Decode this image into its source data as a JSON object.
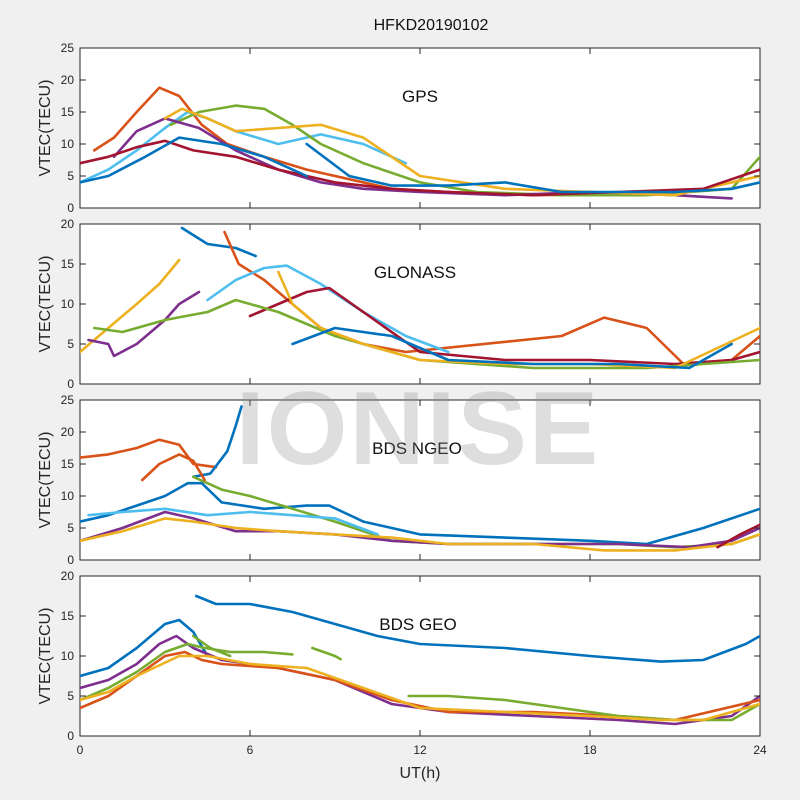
{
  "chart_data": [
    {
      "type": "line",
      "title": "HFKD20190102",
      "panel_label": "GPS",
      "xlabel": "",
      "ylabel": "VTEC(TECU)",
      "xlim": [
        0,
        24
      ],
      "ylim": [
        0,
        25
      ],
      "xticks": [
        0,
        6,
        12,
        18,
        24
      ],
      "yticks": [
        0,
        5,
        10,
        15,
        20,
        25
      ],
      "series": [
        {
          "color": "#d95319",
          "x": [
            0.5,
            1.2,
            2,
            2.8,
            3.5,
            4.3,
            5.2,
            6.5,
            8,
            9.5,
            11,
            13,
            16,
            19,
            21
          ],
          "y": [
            9,
            11,
            15,
            18.8,
            17.5,
            13,
            10,
            8,
            6,
            4.5,
            3,
            2.5,
            2,
            2.2,
            2.5
          ]
        },
        {
          "color": "#4dbeee",
          "x": [
            0,
            1,
            2,
            3,
            3.8,
            4.5,
            5.5,
            7,
            8.5,
            10,
            11.5
          ],
          "y": [
            4,
            6,
            9,
            12.5,
            15,
            14,
            12,
            10,
            11.5,
            10,
            7
          ]
        },
        {
          "color": "#77ac30",
          "x": [
            3.2,
            4.2,
            5.5,
            6.5,
            7.5,
            8.5,
            10,
            12,
            14,
            17,
            20,
            23,
            24
          ],
          "y": [
            13,
            15,
            16,
            15.5,
            13,
            10,
            7,
            4,
            2.5,
            2,
            2,
            3,
            8
          ]
        },
        {
          "color": "#7e2f8e",
          "x": [
            1.2,
            2,
            3,
            4.2,
            5.5,
            7,
            8.5,
            10,
            12,
            15,
            18,
            21,
            23
          ],
          "y": [
            8,
            12,
            14,
            12.5,
            9,
            6,
            4,
            3,
            2.5,
            2,
            2.5,
            2,
            1.5
          ]
        },
        {
          "color": "#edb120",
          "x": [
            3,
            3.6,
            4.5,
            5.5,
            7,
            8.5,
            10,
            12,
            15,
            18,
            21,
            24
          ],
          "y": [
            14,
            15.5,
            14,
            12,
            12.5,
            13,
            11,
            5,
            3,
            2.5,
            2,
            5
          ]
        },
        {
          "color": "#a2142f",
          "x": [
            0,
            1,
            2,
            3,
            4,
            5.5,
            7,
            9,
            11,
            13,
            16,
            19,
            22,
            24
          ],
          "y": [
            7,
            8,
            9.5,
            10.5,
            9,
            8,
            6,
            4,
            3,
            2.5,
            2,
            2.5,
            3,
            6
          ]
        },
        {
          "color": "#0072bd",
          "x": [
            8,
            9.5,
            11,
            13,
            15,
            17,
            19,
            21,
            23,
            24
          ],
          "y": [
            10,
            5,
            3.5,
            3.5,
            4,
            2.5,
            2.5,
            2.5,
            3,
            4
          ]
        },
        {
          "color": "#0072bd",
          "x": [
            0,
            1,
            2.3,
            3.5,
            5,
            6.5,
            8
          ],
          "y": [
            4,
            5,
            8,
            11,
            10,
            8,
            5
          ]
        }
      ]
    },
    {
      "type": "line",
      "panel_label": "GLONASS",
      "xlabel": "",
      "ylabel": "VTEC(TECU)",
      "xlim": [
        0,
        24
      ],
      "ylim": [
        0,
        20
      ],
      "xticks": [
        0,
        6,
        12,
        18,
        24
      ],
      "yticks": [
        0,
        5,
        10,
        15,
        20
      ],
      "series": [
        {
          "color": "#0072bd",
          "x": [
            3.6,
            4.5,
            5.5,
            6.2
          ],
          "y": [
            19.5,
            17.5,
            17,
            16
          ]
        },
        {
          "color": "#d95319",
          "x": [
            5.1,
            5.6,
            6.5,
            7.5,
            8.5,
            10,
            11.5,
            17,
            18.5,
            20,
            21.3,
            23,
            24
          ],
          "y": [
            19,
            15,
            13,
            10,
            7,
            5,
            4,
            6,
            8.3,
            7,
            2.5,
            3,
            6
          ]
        },
        {
          "color": "#4dbeee",
          "x": [
            4.5,
            5.5,
            6.5,
            7.3,
            8.5,
            10,
            11.5,
            13
          ],
          "y": [
            10.5,
            13,
            14.5,
            14.8,
            12.5,
            9,
            6,
            4
          ]
        },
        {
          "color": "#edb120",
          "x": [
            0,
            1,
            2,
            2.8,
            3.5
          ],
          "y": [
            4,
            7,
            10,
            12.5,
            15.5
          ]
        },
        {
          "color": "#a2142f",
          "x": [
            6,
            7,
            8,
            8.8,
            10,
            12,
            15,
            18,
            21,
            23,
            24
          ],
          "y": [
            8.5,
            10,
            11.5,
            12,
            9,
            4,
            3,
            3,
            2.5,
            3,
            4
          ]
        },
        {
          "color": "#7e2f8e",
          "x": [
            0.3,
            1,
            1.2,
            2,
            3,
            3.5,
            4.2
          ],
          "y": [
            5.5,
            5,
            3.5,
            5,
            8,
            10,
            11.5
          ]
        },
        {
          "color": "#77ac30",
          "x": [
            0.5,
            1.5,
            3,
            4.5,
            5.5,
            7,
            9,
            12,
            16,
            20,
            24
          ],
          "y": [
            7,
            6.5,
            8,
            9,
            10.5,
            9,
            6,
            3,
            2,
            2,
            3
          ]
        },
        {
          "color": "#edb120",
          "x": [
            7,
            7.5,
            8.5,
            10,
            12,
            15,
            18,
            21,
            24
          ],
          "y": [
            14,
            10,
            7,
            5,
            3,
            2.5,
            2.5,
            2,
            7
          ]
        },
        {
          "color": "#0072bd",
          "x": [
            7.5,
            9,
            11,
            13,
            16,
            19,
            21.5,
            23
          ],
          "y": [
            5,
            7,
            6,
            3,
            2.5,
            2.5,
            2,
            5
          ]
        }
      ]
    },
    {
      "type": "line",
      "panel_label": "BDS NGEO",
      "xlabel": "",
      "ylabel": "VTEC(TECU)",
      "xlim": [
        0,
        24
      ],
      "ylim": [
        0,
        25
      ],
      "xticks": [
        0,
        6,
        12,
        18,
        24
      ],
      "yticks": [
        0,
        5,
        10,
        15,
        20,
        25
      ],
      "series": [
        {
          "color": "#d95319",
          "x": [
            0,
            1,
            2,
            2.8,
            3.5,
            4,
            4.8
          ],
          "y": [
            16,
            16.5,
            17.5,
            18.8,
            18,
            15,
            14.5
          ]
        },
        {
          "color": "#0072bd",
          "x": [
            4,
            4.6,
            5.2,
            5.5,
            5.7
          ],
          "y": [
            13,
            13.5,
            17,
            21,
            24
          ]
        },
        {
          "color": "#0072bd",
          "x": [
            0,
            1,
            2,
            3,
            3.8,
            4.3,
            5,
            6.5,
            8,
            8.8,
            10,
            12,
            15,
            18,
            20,
            22,
            24
          ],
          "y": [
            6,
            7,
            8.5,
            10,
            12,
            12,
            9,
            8,
            8.5,
            8.5,
            6,
            4,
            3.5,
            3,
            2.5,
            5,
            8
          ]
        },
        {
          "color": "#77ac30",
          "x": [
            4,
            5,
            6,
            7.5,
            9,
            11,
            13,
            16,
            19,
            21,
            23,
            24
          ],
          "y": [
            13,
            11,
            10,
            8,
            6,
            3,
            2.5,
            2.5,
            2.5,
            2,
            2.5,
            4
          ]
        },
        {
          "color": "#4dbeee",
          "x": [
            0.3,
            1.5,
            3,
            4.5,
            6,
            7.5,
            9,
            10.5
          ],
          "y": [
            7,
            7.5,
            8,
            7,
            7.5,
            7,
            6.5,
            4
          ]
        },
        {
          "color": "#d95319",
          "x": [
            2.2,
            2.8,
            3.5,
            4,
            4.4
          ],
          "y": [
            12.5,
            15,
            16.5,
            15.5,
            12.5
          ]
        },
        {
          "color": "#7e2f8e",
          "x": [
            0,
            1.5,
            3,
            4,
            5.5,
            7,
            9,
            11,
            13,
            16,
            19,
            21.5,
            23,
            24
          ],
          "y": [
            3,
            5,
            7.5,
            6.5,
            4.5,
            4.5,
            4,
            3,
            2.5,
            2.5,
            2.5,
            2,
            3,
            5
          ]
        },
        {
          "color": "#edb120",
          "x": [
            0,
            1.5,
            3,
            4,
            5.5,
            7,
            9,
            11,
            13,
            16,
            18.5,
            21,
            23,
            24
          ],
          "y": [
            3,
            4.5,
            6.5,
            6,
            5,
            4.5,
            4,
            3.5,
            2.5,
            2.5,
            1.5,
            1.5,
            2.5,
            4
          ]
        },
        {
          "color": "#a2142f",
          "x": [
            22.5,
            23.3,
            24
          ],
          "y": [
            2,
            4,
            5.5
          ]
        }
      ]
    },
    {
      "type": "line",
      "panel_label": "BDS GEO",
      "xlabel": "UT(h)",
      "ylabel": "VTEC(TECU)",
      "xlim": [
        0,
        24
      ],
      "ylim": [
        0,
        20
      ],
      "xticks": [
        0,
        6,
        12,
        18,
        24
      ],
      "yticks": [
        0,
        5,
        10,
        15,
        20
      ],
      "series": [
        {
          "color": "#0072bd",
          "x": [
            0,
            1,
            2,
            3,
            3.5,
            4,
            4.5
          ],
          "y": [
            7.5,
            8.5,
            11,
            14,
            14.5,
            13,
            10
          ]
        },
        {
          "color": "#0072bd",
          "x": [
            4.1,
            4.8,
            6,
            7.5,
            9,
            10.5,
            12,
            15,
            18,
            20.5,
            22,
            23.5,
            24
          ],
          "y": [
            17.5,
            16.5,
            16.5,
            15.5,
            14,
            12.5,
            11.5,
            11,
            10,
            9.3,
            9.5,
            11.5,
            12.5
          ]
        },
        {
          "color": "#7e2f8e",
          "x": [
            0,
            1,
            2,
            2.8,
            3.4,
            4,
            5,
            7,
            9,
            11,
            13,
            16,
            19,
            21,
            23,
            24
          ],
          "y": [
            6,
            7,
            9,
            11.5,
            12.5,
            11,
            9.5,
            8.5,
            7,
            4,
            3,
            2.5,
            2,
            1.5,
            2.5,
            5
          ]
        },
        {
          "color": "#d95319",
          "x": [
            0,
            1,
            2,
            3,
            3.7,
            4.3,
            5,
            7,
            9,
            11,
            13,
            16,
            19,
            21,
            24
          ],
          "y": [
            3.5,
            5,
            7.5,
            10,
            10.5,
            9.5,
            9,
            8.5,
            7,
            4.5,
            3,
            3,
            2.5,
            2,
            4.5
          ]
        },
        {
          "color": "#77ac30",
          "x": [
            0,
            1,
            2,
            3,
            3.8,
            4.4,
            5.3,
            6.5,
            7.5
          ],
          "y": [
            4.5,
            6,
            8,
            10.5,
            11.5,
            11,
            10.5,
            10.5,
            10.2
          ]
        },
        {
          "color": "#77ac30",
          "x": [
            4,
            4.6,
            5.3
          ],
          "y": [
            12.5,
            11,
            10
          ]
        },
        {
          "color": "#77ac30",
          "x": [
            8.2,
            9,
            9.2
          ],
          "y": [
            11,
            10,
            9.6
          ]
        },
        {
          "color": "#77ac30",
          "x": [
            11.6,
            13,
            15,
            17,
            19,
            21,
            23,
            24
          ],
          "y": [
            5,
            5,
            4.5,
            3.5,
            2.5,
            2,
            2,
            4
          ]
        },
        {
          "color": "#edb120",
          "x": [
            0,
            1,
            2,
            3.5,
            4.5,
            6,
            8,
            10,
            12,
            15,
            18,
            20.5,
            22,
            24
          ],
          "y": [
            4.5,
            5.5,
            7.5,
            10,
            10,
            9,
            8.5,
            6,
            3.5,
            3,
            2.5,
            2,
            2,
            4
          ]
        }
      ]
    }
  ],
  "watermark": "IONISE",
  "figure_title": "HFKD20190102",
  "colors": {
    "background": "#f0f0f0",
    "axes_face": "#ffffff",
    "axes_edge": "#262626"
  }
}
